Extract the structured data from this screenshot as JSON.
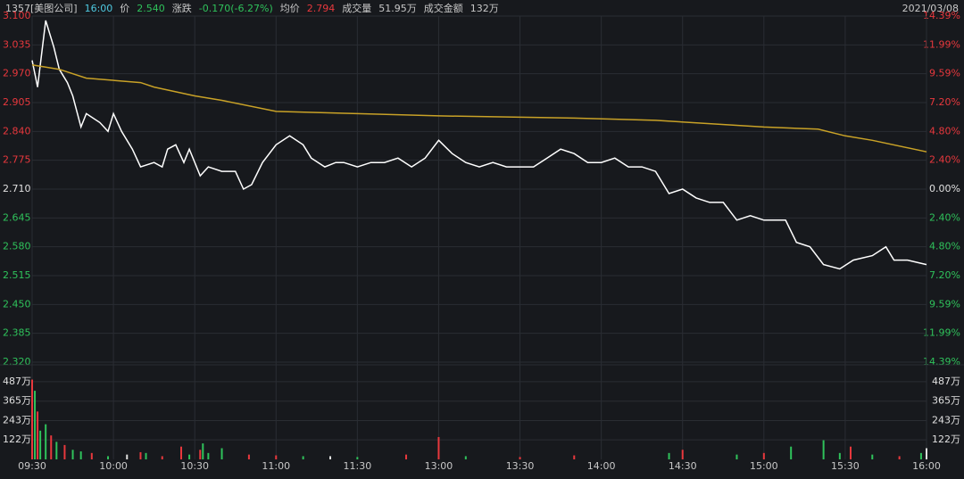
{
  "header": {
    "items": [
      {
        "text": "1357[美图公司]",
        "color": "#c8c8c8"
      },
      {
        "text": "16:00",
        "color": "#4ec9e0"
      },
      {
        "text": "价",
        "color": "#c8c8c8"
      },
      {
        "text": "2.540",
        "color": "#2fc25b"
      },
      {
        "text": "涨跌",
        "color": "#c8c8c8"
      },
      {
        "text": "-0.170(-6.27%)",
        "color": "#2fc25b"
      },
      {
        "text": "均价",
        "color": "#c8c8c8"
      },
      {
        "text": "2.794",
        "color": "#e8383d"
      },
      {
        "text": "成交量",
        "color": "#c8c8c8"
      },
      {
        "text": "51.95万",
        "color": "#c8c8c8"
      },
      {
        "text": "成交金额",
        "color": "#c8c8c8"
      },
      {
        "text": "132万",
        "color": "#c8c8c8"
      }
    ],
    "date": "2021/03/08"
  },
  "chart_data": [
    {
      "type": "line",
      "xlim": [
        0,
        330
      ],
      "xticks": [
        {
          "value": 0,
          "label": "09:30"
        },
        {
          "value": 30,
          "label": "10:00"
        },
        {
          "value": 60,
          "label": "10:30"
        },
        {
          "value": 90,
          "label": "11:00"
        },
        {
          "value": 120,
          "label": "11:30"
        },
        {
          "value": 150,
          "label": "13:00"
        },
        {
          "value": 180,
          "label": "13:30"
        },
        {
          "value": 210,
          "label": "14:00"
        },
        {
          "value": 240,
          "label": "14:30"
        },
        {
          "value": 270,
          "label": "15:00"
        },
        {
          "value": 300,
          "label": "15:30"
        },
        {
          "value": 330,
          "label": "16:00"
        }
      ],
      "ylim": [
        2.32,
        3.1
      ],
      "yticks": [
        {
          "value": 3.1,
          "label": "3.100"
        },
        {
          "value": 3.035,
          "label": "3.035"
        },
        {
          "value": 2.97,
          "label": "2.970"
        },
        {
          "value": 2.905,
          "label": "2.905"
        },
        {
          "value": 2.84,
          "label": "2.840"
        },
        {
          "value": 2.775,
          "label": "2.775"
        },
        {
          "value": 2.71,
          "label": "2.710"
        },
        {
          "value": 2.645,
          "label": "2.645"
        },
        {
          "value": 2.58,
          "label": "2.580"
        },
        {
          "value": 2.515,
          "label": "2.515"
        },
        {
          "value": 2.45,
          "label": "2.450"
        },
        {
          "value": 2.385,
          "label": "2.385"
        },
        {
          "value": 2.32,
          "label": "2.320"
        }
      ],
      "y2lim": [
        -14.39,
        14.39
      ],
      "y2ticks": [
        {
          "value": 14.39,
          "label": "14.39%"
        },
        {
          "value": 11.99,
          "label": "11.99%"
        },
        {
          "value": 9.59,
          "label": "9.59%"
        },
        {
          "value": 7.2,
          "label": "7.20%"
        },
        {
          "value": 4.8,
          "label": "4.80%"
        },
        {
          "value": 2.4,
          "label": "2.40%"
        },
        {
          "value": 0,
          "label": "0.00%"
        },
        {
          "value": -2.4,
          "label": "2.40%"
        },
        {
          "value": -4.8,
          "label": "4.80%"
        },
        {
          "value": -7.2,
          "label": "7.20%"
        },
        {
          "value": -9.59,
          "label": "9.59%"
        },
        {
          "value": -11.99,
          "label": "11.99%"
        },
        {
          "value": -14.39,
          "label": "14.39%"
        }
      ],
      "up_color": "#e8383d",
      "down_color": "#2fc25b",
      "flat_color": "#e0e0e0",
      "grid": true,
      "series": [
        {
          "color": "#ffffff",
          "x": [
            0,
            2,
            5,
            8,
            10,
            13,
            15,
            18,
            20,
            25,
            28,
            30,
            33,
            37,
            40,
            45,
            48,
            50,
            53,
            56,
            58,
            62,
            65,
            70,
            75,
            78,
            81,
            85,
            90,
            95,
            100,
            103,
            108,
            112,
            115,
            120,
            125,
            130,
            135,
            140,
            145,
            150,
            155,
            160,
            165,
            170,
            175,
            180,
            185,
            190,
            195,
            200,
            205,
            210,
            215,
            220,
            225,
            230,
            235,
            240,
            245,
            250,
            255,
            260,
            265,
            270,
            275,
            278,
            282,
            287,
            292,
            298,
            303,
            310,
            315,
            318,
            323,
            330
          ],
          "values": [
            3.0,
            2.94,
            3.09,
            3.03,
            2.98,
            2.95,
            2.92,
            2.85,
            2.88,
            2.86,
            2.84,
            2.88,
            2.84,
            2.8,
            2.76,
            2.77,
            2.76,
            2.8,
            2.81,
            2.77,
            2.8,
            2.74,
            2.76,
            2.75,
            2.75,
            2.71,
            2.72,
            2.77,
            2.81,
            2.83,
            2.81,
            2.78,
            2.76,
            2.77,
            2.77,
            2.76,
            2.77,
            2.77,
            2.78,
            2.76,
            2.78,
            2.82,
            2.79,
            2.77,
            2.76,
            2.77,
            2.76,
            2.76,
            2.76,
            2.78,
            2.8,
            2.79,
            2.77,
            2.77,
            2.78,
            2.76,
            2.76,
            2.75,
            2.7,
            2.71,
            2.69,
            2.68,
            2.68,
            2.64,
            2.65,
            2.64,
            2.64,
            2.64,
            2.59,
            2.58,
            2.54,
            2.53,
            2.55,
            2.56,
            2.58,
            2.55,
            2.55,
            2.54
          ]
        },
        {
          "color": "#c9a227",
          "x": [
            0,
            10,
            20,
            40,
            45,
            60,
            70,
            90,
            120,
            150,
            200,
            230,
            270,
            290,
            300,
            310,
            330
          ],
          "values": [
            2.99,
            2.98,
            2.96,
            2.95,
            2.94,
            2.92,
            2.91,
            2.885,
            2.88,
            2.875,
            2.87,
            2.865,
            2.85,
            2.845,
            2.83,
            2.82,
            2.794
          ]
        }
      ]
    },
    {
      "type": "bar",
      "xlim": [
        0,
        330
      ],
      "ylim": [
        0,
        587
      ],
      "yticks": [
        {
          "value": 487,
          "label": "487万"
        },
        {
          "value": 365,
          "label": "365万"
        },
        {
          "value": 243,
          "label": "243万"
        },
        {
          "value": 122,
          "label": "122万"
        }
      ],
      "x": [
        0,
        1,
        2,
        3,
        5,
        7,
        9,
        12,
        15,
        18,
        22,
        28,
        35,
        40,
        42,
        48,
        55,
        58,
        62,
        63,
        65,
        70,
        80,
        90,
        100,
        110,
        120,
        138,
        150,
        160,
        180,
        200,
        235,
        240,
        260,
        270,
        280,
        292,
        298,
        302,
        310,
        320,
        328,
        330
      ],
      "values": [
        500,
        430,
        300,
        180,
        220,
        150,
        110,
        90,
        60,
        50,
        40,
        20,
        30,
        45,
        40,
        20,
        80,
        30,
        60,
        100,
        40,
        70,
        30,
        25,
        20,
        20,
        15,
        30,
        140,
        20,
        15,
        25,
        40,
        60,
        30,
        40,
        80,
        120,
        40,
        80,
        30,
        20,
        40,
        70
      ],
      "colors": [
        "#e8383d",
        "#2fc25b",
        "#e8383d",
        "#2fc25b",
        "#2fc25b",
        "#e8383d",
        "#2fc25b",
        "#e8383d",
        "#2fc25b",
        "#2fc25b",
        "#e8383d",
        "#2fc25b",
        "#e0e0e0",
        "#e8383d",
        "#2fc25b",
        "#e8383d",
        "#e8383d",
        "#2fc25b",
        "#e8383d",
        "#2fc25b",
        "#2fc25b",
        "#2fc25b",
        "#e8383d",
        "#e8383d",
        "#2fc25b",
        "#e0e0e0",
        "#2fc25b",
        "#e8383d",
        "#e8383d",
        "#2fc25b",
        "#e8383d",
        "#e8383d",
        "#2fc25b",
        "#e8383d",
        "#2fc25b",
        "#e8383d",
        "#2fc25b",
        "#2fc25b",
        "#2fc25b",
        "#e8383d",
        "#2fc25b",
        "#e8383d",
        "#2fc25b",
        "#e0e0e0"
      ],
      "label_color": "#e0e0e0"
    }
  ]
}
